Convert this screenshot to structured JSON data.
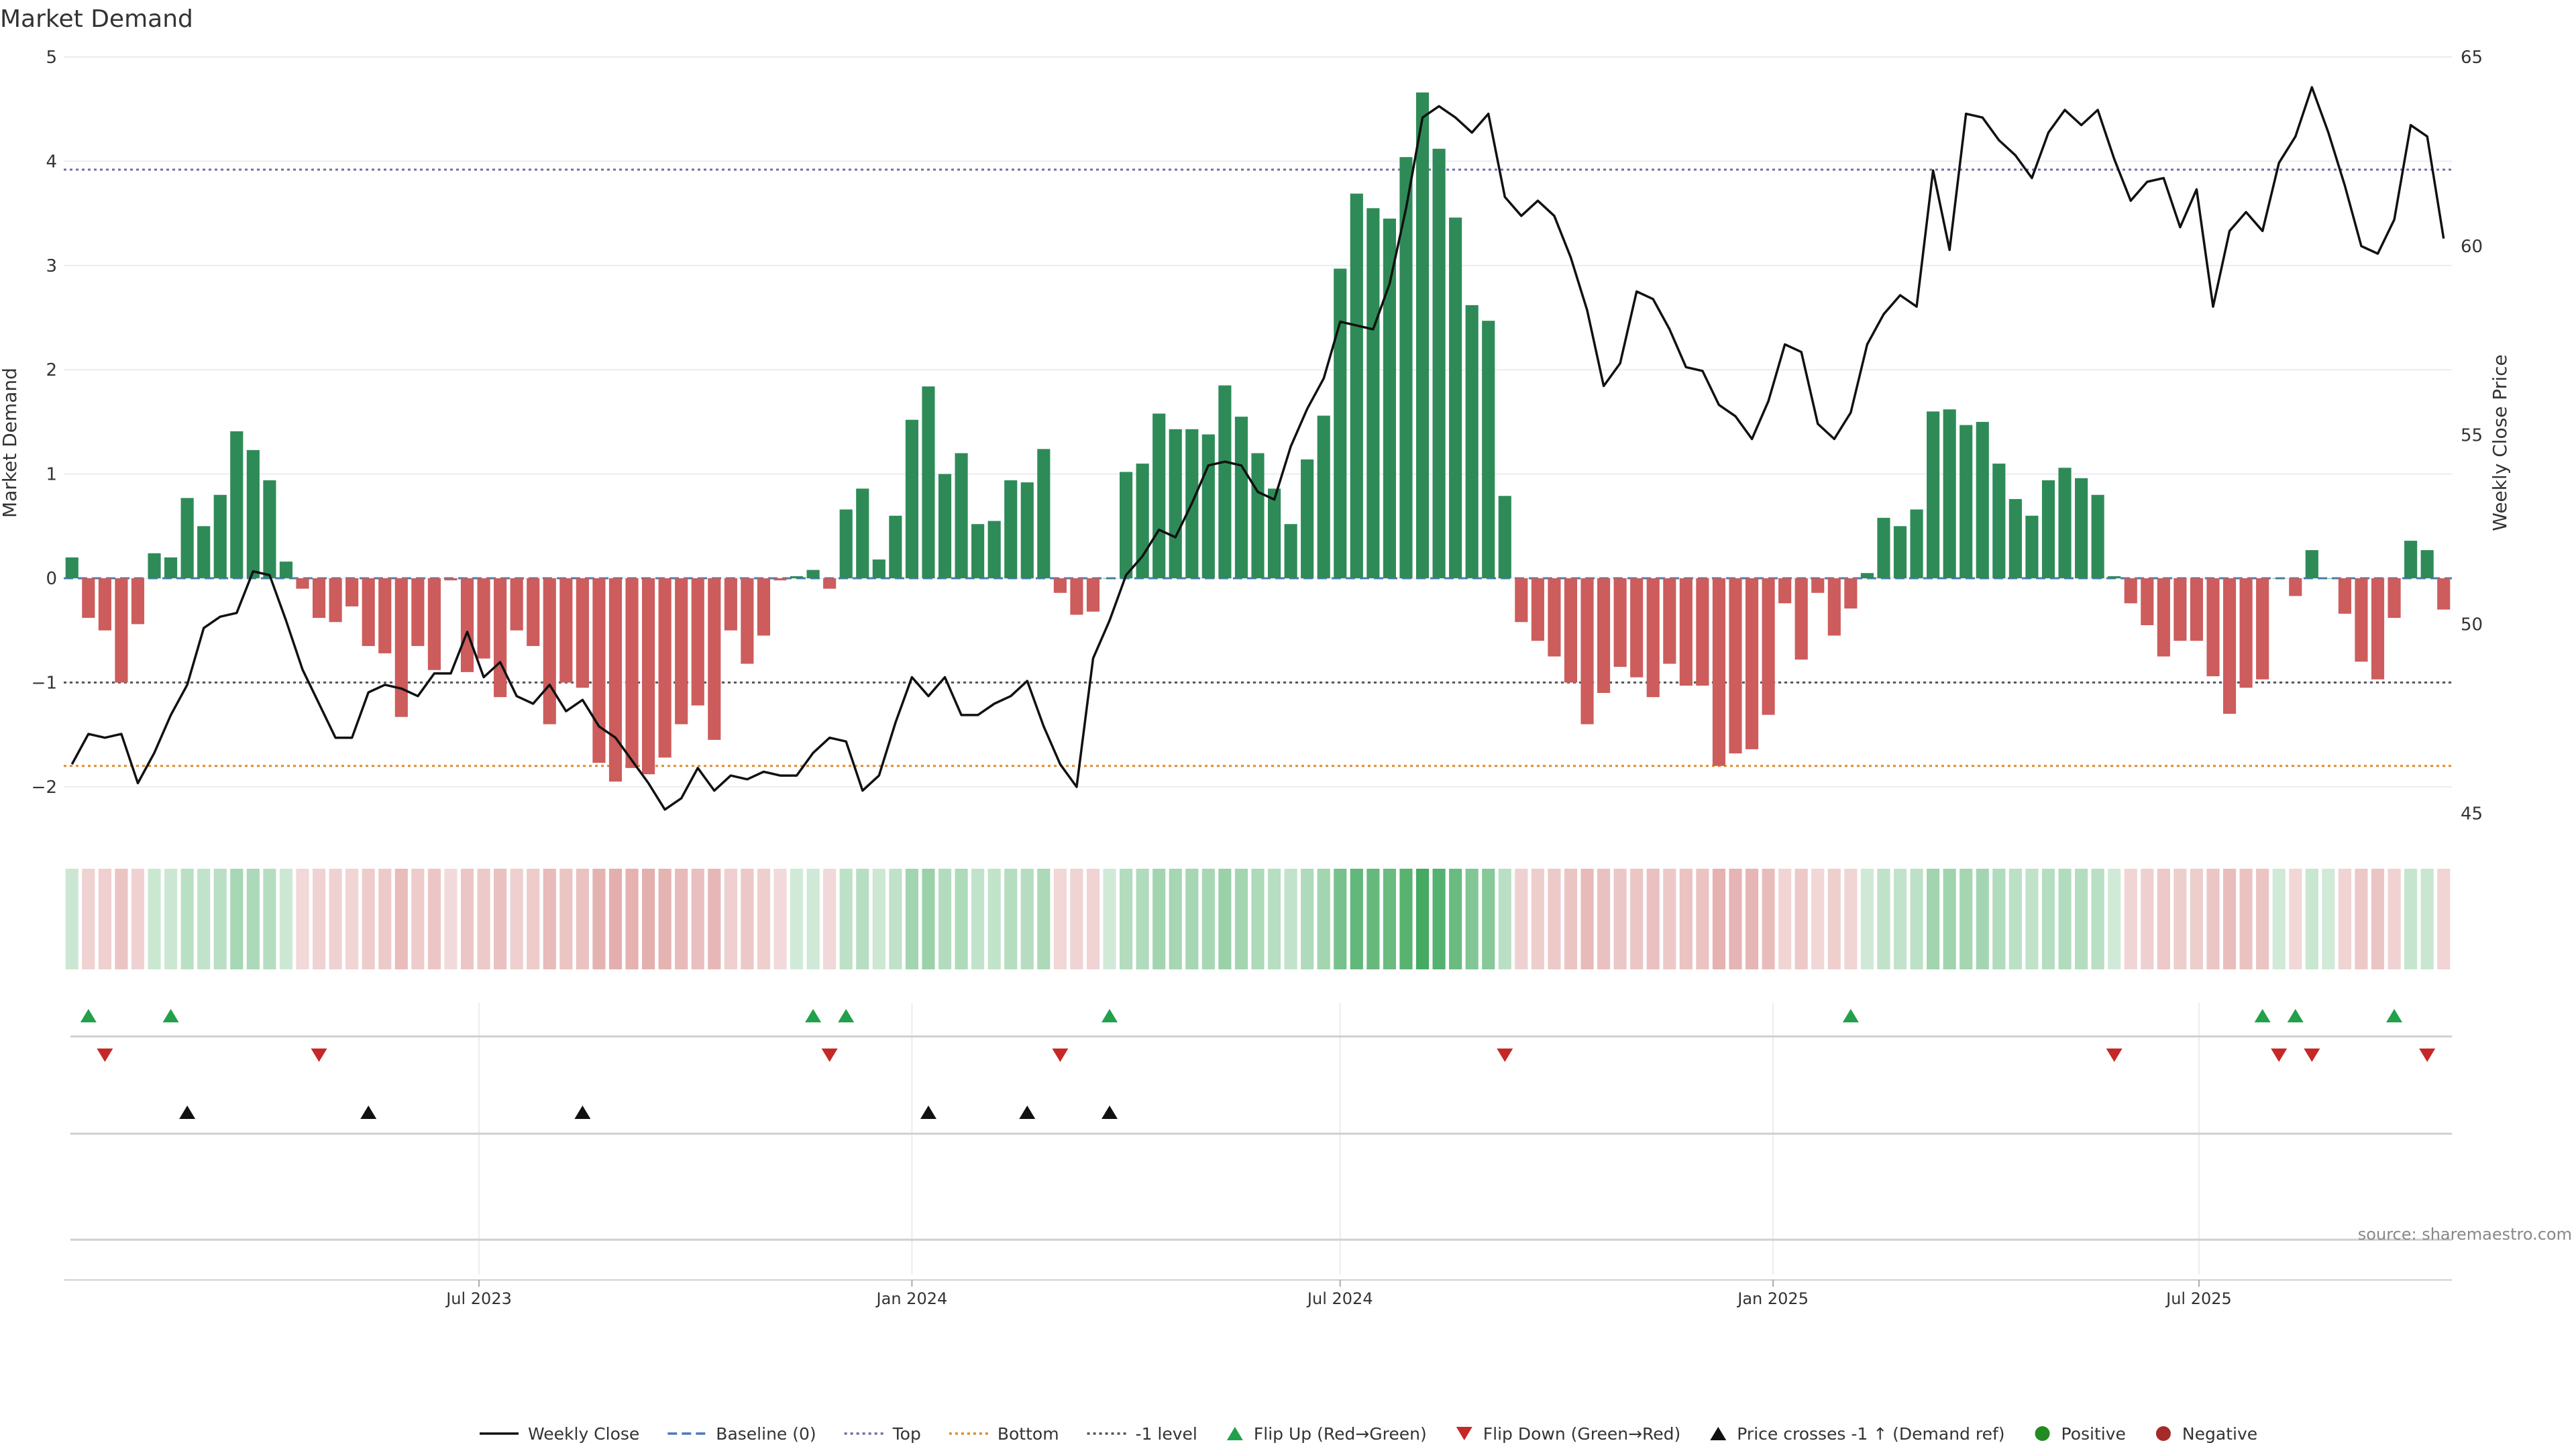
{
  "chart_data": {
    "type": "bar",
    "title": "Market Demand",
    "ylabel": "Market Demand",
    "y2label": "Weekly Close Price",
    "ylim": [
      -2.4,
      5.0
    ],
    "y2lim": [
      44.6,
      65.0
    ],
    "yticks": [
      -2,
      -1,
      0,
      1,
      2,
      3,
      4,
      5
    ],
    "y2ticks": [
      45,
      50,
      55,
      60,
      65
    ],
    "x_start": "2023-01-09",
    "x_end": "2025-10-20",
    "week_step_days": 7,
    "xtick_labels": [
      {
        "date": "2023-07-01",
        "label": "Jul 2023"
      },
      {
        "date": "2024-01-01",
        "label": "Jan 2024"
      },
      {
        "date": "2024-07-01",
        "label": "Jul 2024"
      },
      {
        "date": "2025-01-01",
        "label": "Jan 2025"
      },
      {
        "date": "2025-07-01",
        "label": "Jul 2025"
      }
    ],
    "levels": {
      "top": 3.92,
      "bottom": -1.8,
      "minus_one": -1.0,
      "baseline": 0
    },
    "demand": [
      0.2,
      -0.38,
      -0.5,
      -1.0,
      -0.44,
      0.24,
      0.2,
      0.77,
      0.5,
      0.8,
      1.41,
      1.23,
      0.94,
      0.16,
      -0.1,
      -0.38,
      -0.42,
      -0.27,
      -0.65,
      -0.72,
      -1.33,
      -0.65,
      -0.88,
      -0.02,
      -0.9,
      -0.77,
      -1.14,
      -0.5,
      -0.65,
      -1.4,
      -1.0,
      -1.05,
      -1.77,
      -1.95,
      -1.82,
      -1.88,
      -1.72,
      -1.4,
      -1.22,
      -1.55,
      -0.5,
      -0.82,
      -0.55,
      -0.02,
      0.02,
      0.08,
      -0.1,
      0.66,
      0.86,
      0.18,
      0.6,
      1.52,
      1.84,
      1.0,
      1.2,
      0.52,
      0.55,
      0.94,
      0.92,
      1.24,
      -0.14,
      -0.35,
      -0.32,
      0.0,
      1.02,
      1.1,
      1.58,
      1.43,
      1.43,
      1.38,
      1.85,
      1.55,
      1.2,
      0.86,
      0.52,
      1.14,
      1.56,
      2.97,
      3.69,
      3.55,
      3.45,
      4.04,
      4.66,
      4.12,
      3.46,
      2.62,
      2.47,
      0.79,
      -0.42,
      -0.6,
      -0.75,
      -1.0,
      -1.4,
      -1.1,
      -0.85,
      -0.95,
      -1.14,
      -0.82,
      -1.03,
      -1.03,
      -1.8,
      -1.68,
      -1.64,
      -1.31,
      -0.24,
      -0.78,
      -0.14,
      -0.55,
      -0.29,
      0.05,
      0.58,
      0.5,
      0.66,
      1.6,
      1.62,
      1.47,
      1.5,
      1.1,
      0.76,
      0.6,
      0.94,
      1.06,
      0.96,
      0.8,
      0.02,
      -0.24,
      -0.45,
      -0.75,
      -0.6,
      -0.6,
      -0.94,
      -1.3,
      -1.05,
      -0.97,
      0.0,
      -0.17,
      0.27,
      0.0,
      -0.34,
      -0.8,
      -0.97,
      -0.38,
      0.36,
      0.27,
      -0.3
    ],
    "price": [
      46.3,
      47.1,
      47.0,
      47.1,
      45.8,
      46.6,
      47.6,
      48.4,
      49.9,
      50.2,
      50.3,
      51.4,
      51.3,
      50.1,
      48.8,
      47.9,
      47.0,
      47.0,
      48.2,
      48.4,
      48.3,
      48.1,
      48.7,
      48.7,
      49.8,
      48.6,
      49.0,
      48.1,
      47.9,
      48.4,
      47.7,
      48.0,
      47.3,
      47.0,
      46.4,
      45.8,
      45.1,
      45.4,
      46.2,
      45.6,
      46.0,
      45.9,
      46.1,
      46.0,
      46.0,
      46.6,
      47.0,
      46.9,
      45.6,
      46.0,
      47.4,
      48.6,
      48.1,
      48.6,
      47.6,
      47.6,
      47.9,
      48.1,
      48.5,
      47.3,
      46.3,
      45.7,
      49.1,
      50.1,
      51.3,
      51.8,
      52.5,
      52.3,
      53.2,
      54.2,
      54.3,
      54.2,
      53.5,
      53.3,
      54.7,
      55.7,
      56.5,
      58.0,
      57.9,
      57.8,
      59.0,
      61.0,
      63.4,
      63.7,
      63.4,
      63.0,
      63.5,
      61.3,
      60.8,
      61.2,
      60.8,
      59.7,
      58.3,
      56.3,
      56.9,
      58.8,
      58.6,
      57.8,
      56.8,
      56.7,
      55.8,
      55.5,
      54.9,
      55.9,
      57.4,
      57.2,
      55.3,
      54.9,
      55.6,
      57.4,
      58.2,
      58.7,
      58.4,
      62.0,
      59.9,
      63.5,
      63.4,
      62.8,
      62.4,
      61.8,
      63.0,
      63.6,
      63.2,
      63.6,
      62.3,
      61.2,
      61.7,
      61.8,
      60.5,
      61.5,
      58.4,
      60.4,
      60.9,
      60.4,
      62.2,
      62.9,
      64.2,
      63.0,
      61.6,
      60.0,
      59.8,
      60.7,
      63.2,
      62.9,
      60.2
    ],
    "strip_intensity_note": "strip colour follows the sign and magnitude of demand",
    "flip_up_weeks": [
      1,
      6,
      45,
      47,
      63,
      108,
      133,
      135,
      141
    ],
    "flip_down_weeks": [
      2,
      15,
      46,
      60,
      87,
      124,
      134,
      136,
      143
    ],
    "price_cross_weeks": [
      7,
      18,
      31,
      52,
      58,
      63
    ],
    "colors": {
      "positive_bar": "#2e8b57",
      "negative_bar": "#cd5c5c",
      "price_line": "#111111",
      "baseline": "#4a7ab5",
      "top": "#6f6fa0",
      "bottom": "#e08a2a",
      "minus_one": "#555555",
      "flip_up": "#22a04b",
      "flip_down": "#c62828",
      "cross": "#111111",
      "positive_dot": "#228b22",
      "negative_dot": "#a52a2a"
    },
    "legend": [
      {
        "label": "Weekly Close",
        "kind": "line-solid",
        "color": "#111111"
      },
      {
        "label": "Baseline (0)",
        "kind": "line-dash",
        "color": "#4a7ab5"
      },
      {
        "label": "Top",
        "kind": "line-dot",
        "color": "#6f6fa0"
      },
      {
        "label": "Bottom",
        "kind": "line-dot",
        "color": "#e08a2a"
      },
      {
        "label": "-1 level",
        "kind": "line-dot",
        "color": "#555555"
      },
      {
        "label": "Flip Up (Red→Green)",
        "kind": "tri-up",
        "color": "#22a04b"
      },
      {
        "label": "Flip Down (Green→Red)",
        "kind": "tri-down",
        "color": "#c62828"
      },
      {
        "label": "Price crosses -1 ↑ (Demand ref)",
        "kind": "tri-up",
        "color": "#111111"
      },
      {
        "label": "Positive",
        "kind": "dot",
        "color": "#228b22"
      },
      {
        "label": "Negative",
        "kind": "dot",
        "color": "#a52a2a"
      }
    ],
    "legend_placement": "bottom-center",
    "source": "source: sharemaestro.com"
  }
}
